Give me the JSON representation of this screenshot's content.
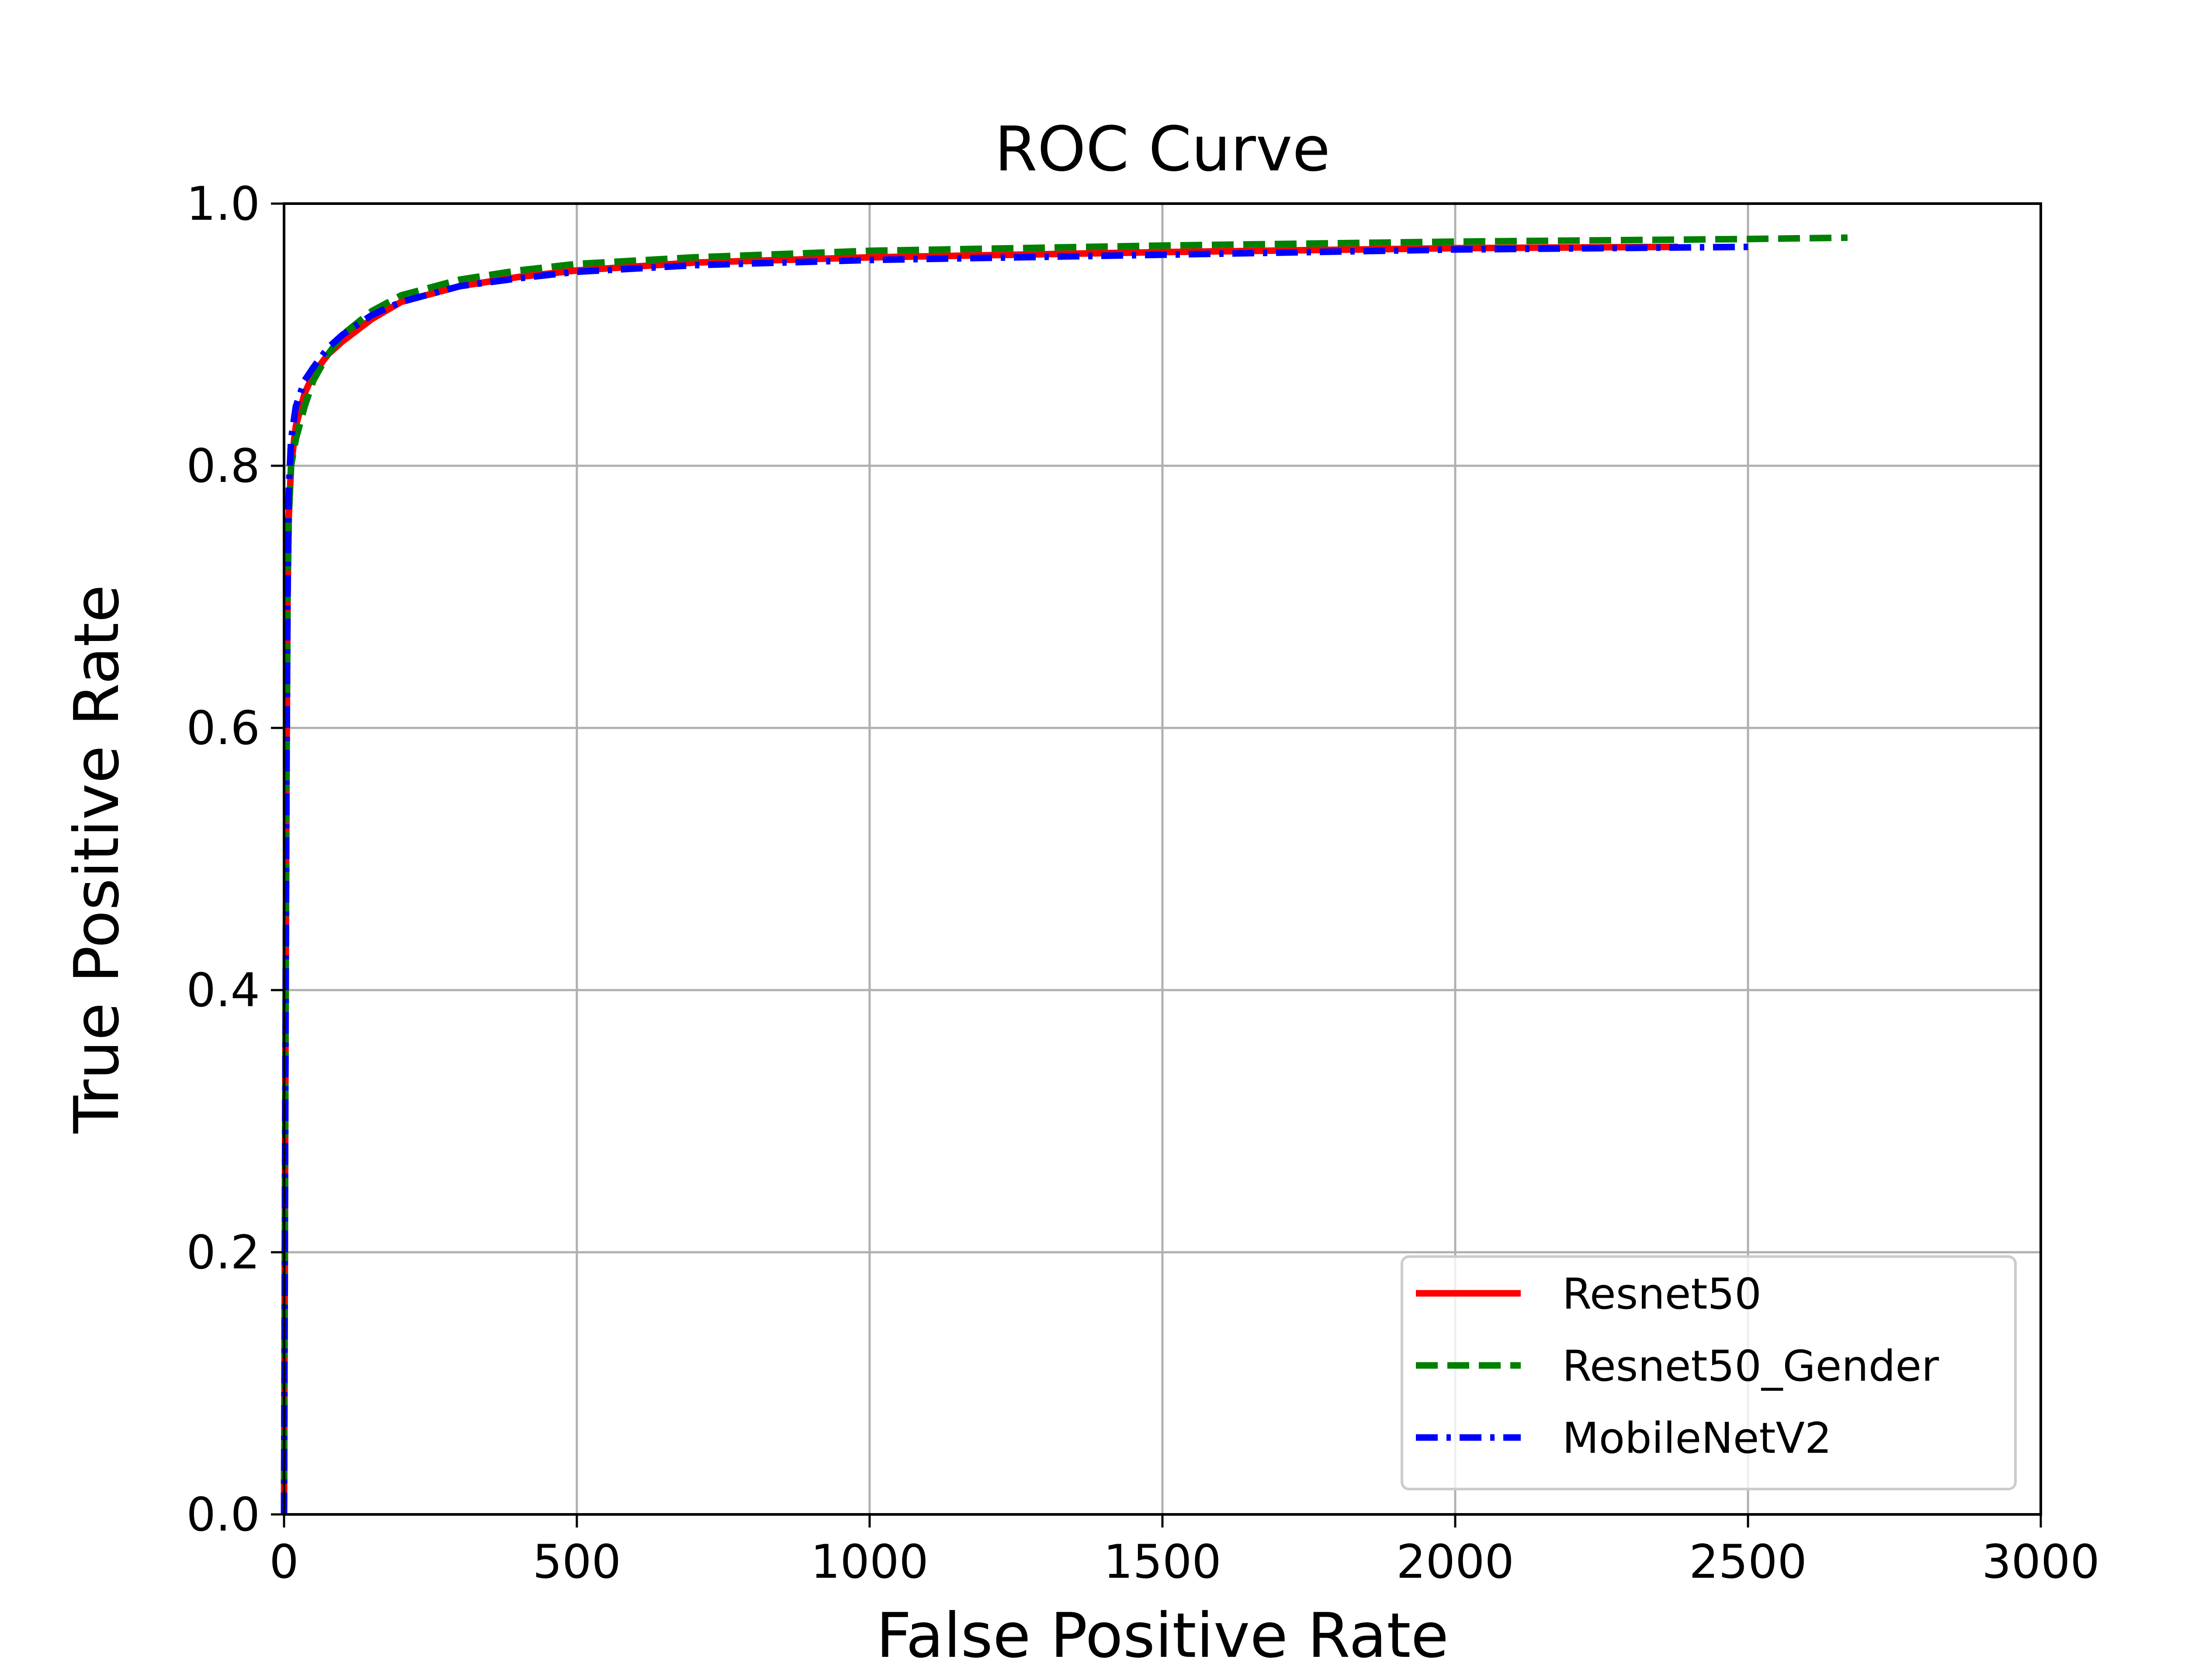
{
  "chart_data": {
    "type": "line",
    "title": "ROC Curve",
    "xlabel": "False Positive Rate",
    "ylabel": "True Positive Rate",
    "xlim": [
      0,
      3000
    ],
    "ylim": [
      0,
      1.0
    ],
    "x_ticks": [
      "0",
      "500",
      "1000",
      "1500",
      "2000",
      "2500",
      "3000"
    ],
    "y_ticks": [
      "0.0",
      "0.2",
      "0.4",
      "0.6",
      "0.8",
      "1.0"
    ],
    "grid": true,
    "legend_position": "lower-right",
    "series": [
      {
        "name": "Resnet50",
        "color": "#ff0000",
        "style": "solid",
        "points": [
          [
            0,
            0
          ],
          [
            2,
            0.3
          ],
          [
            4,
            0.55
          ],
          [
            6,
            0.7
          ],
          [
            8,
            0.76
          ],
          [
            12,
            0.8
          ],
          [
            20,
            0.83
          ],
          [
            35,
            0.855
          ],
          [
            50,
            0.87
          ],
          [
            75,
            0.885
          ],
          [
            100,
            0.895
          ],
          [
            150,
            0.912
          ],
          [
            200,
            0.925
          ],
          [
            300,
            0.937
          ],
          [
            400,
            0.944
          ],
          [
            500,
            0.949
          ],
          [
            700,
            0.955
          ],
          [
            1000,
            0.959
          ],
          [
            1500,
            0.963
          ],
          [
            2000,
            0.966
          ],
          [
            2380,
            0.967
          ]
        ]
      },
      {
        "name": "Resnet50_Gender",
        "color": "#008000",
        "style": "dashed",
        "points": [
          [
            0,
            0
          ],
          [
            2,
            0.3
          ],
          [
            4,
            0.55
          ],
          [
            6,
            0.7
          ],
          [
            8,
            0.76
          ],
          [
            12,
            0.8
          ],
          [
            20,
            0.82
          ],
          [
            35,
            0.845
          ],
          [
            50,
            0.865
          ],
          [
            75,
            0.885
          ],
          [
            100,
            0.9
          ],
          [
            150,
            0.918
          ],
          [
            200,
            0.93
          ],
          [
            300,
            0.942
          ],
          [
            400,
            0.949
          ],
          [
            500,
            0.954
          ],
          [
            700,
            0.959
          ],
          [
            1000,
            0.964
          ],
          [
            1500,
            0.968
          ],
          [
            2000,
            0.971
          ],
          [
            2500,
            0.973
          ],
          [
            2670,
            0.974
          ]
        ]
      },
      {
        "name": "MobileNetV2",
        "color": "#0000ff",
        "style": "dashdot",
        "points": [
          [
            0,
            0
          ],
          [
            2,
            0.3
          ],
          [
            4,
            0.55
          ],
          [
            6,
            0.7
          ],
          [
            8,
            0.78
          ],
          [
            12,
            0.82
          ],
          [
            20,
            0.845
          ],
          [
            35,
            0.865
          ],
          [
            50,
            0.875
          ],
          [
            75,
            0.89
          ],
          [
            100,
            0.9
          ],
          [
            150,
            0.915
          ],
          [
            200,
            0.925
          ],
          [
            300,
            0.937
          ],
          [
            400,
            0.943
          ],
          [
            500,
            0.948
          ],
          [
            700,
            0.953
          ],
          [
            1000,
            0.957
          ],
          [
            1500,
            0.961
          ],
          [
            2000,
            0.965
          ],
          [
            2500,
            0.967
          ]
        ]
      }
    ]
  }
}
